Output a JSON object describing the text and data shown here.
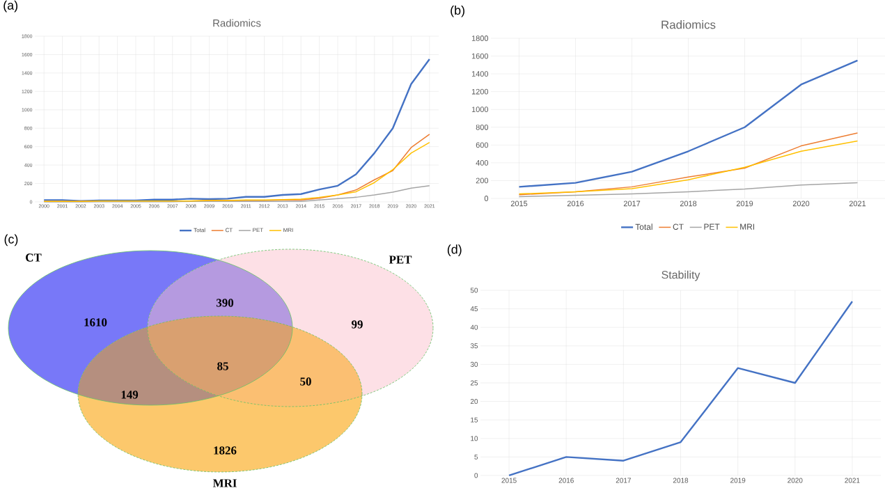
{
  "chart_data": [
    {
      "type": "line",
      "title": "Radiomics",
      "annotations": [
        "(a)"
      ],
      "categories": [
        "2000",
        "2001",
        "2002",
        "2003",
        "2004",
        "2005",
        "2006",
        "2007",
        "2008",
        "2009",
        "2010",
        "2011",
        "2012",
        "2013",
        "2014",
        "2015",
        "2016",
        "2017",
        "2018",
        "2019",
        "2020",
        "2021"
      ],
      "ylim": [
        0,
        1800
      ],
      "yticks": [
        0,
        200,
        400,
        600,
        800,
        1000,
        1200,
        1400,
        1600,
        1800
      ],
      "grid": true,
      "legend": "bottom",
      "series": [
        {
          "name": "Total",
          "color": "#4472c4",
          "values": [
            20,
            20,
            10,
            15,
            15,
            15,
            25,
            25,
            35,
            30,
            35,
            55,
            55,
            75,
            85,
            135,
            175,
            300,
            530,
            800,
            1280,
            1550
          ]
        },
        {
          "name": "CT",
          "color": "#ed7d31",
          "values": [
            5,
            5,
            5,
            10,
            10,
            10,
            10,
            10,
            10,
            15,
            15,
            15,
            15,
            20,
            20,
            40,
            75,
            130,
            240,
            340,
            590,
            735
          ]
        },
        {
          "name": "PET",
          "color": "#a5a5a5",
          "values": [
            0,
            0,
            0,
            2,
            2,
            2,
            2,
            2,
            5,
            5,
            5,
            5,
            5,
            5,
            5,
            20,
            35,
            50,
            75,
            105,
            150,
            175
          ]
        },
        {
          "name": "MRI",
          "color": "#ffc000",
          "values": [
            5,
            5,
            5,
            10,
            10,
            10,
            10,
            10,
            10,
            15,
            15,
            20,
            20,
            25,
            30,
            50,
            75,
            110,
            210,
            350,
            530,
            645
          ]
        }
      ]
    },
    {
      "type": "line",
      "title": "Radiomics",
      "annotations": [
        "(b)"
      ],
      "categories": [
        "2015",
        "2016",
        "2017",
        "2018",
        "2019",
        "2020",
        "2021"
      ],
      "ylim": [
        0,
        1800
      ],
      "yticks": [
        0,
        200,
        400,
        600,
        800,
        1000,
        1200,
        1400,
        1600,
        1800
      ],
      "grid": true,
      "legend": "bottom",
      "series": [
        {
          "name": "Total",
          "color": "#4472c4",
          "values": [
            130,
            175,
            300,
            530,
            800,
            1280,
            1550
          ]
        },
        {
          "name": "CT",
          "color": "#ed7d31",
          "values": [
            40,
            75,
            130,
            240,
            340,
            590,
            735
          ]
        },
        {
          "name": "PET",
          "color": "#a5a5a5",
          "values": [
            20,
            35,
            50,
            75,
            105,
            150,
            175
          ]
        },
        {
          "name": "MRI",
          "color": "#ffc000",
          "values": [
            50,
            75,
            110,
            210,
            350,
            530,
            645
          ]
        }
      ]
    },
    {
      "type": "other",
      "annotations": [
        "(c)",
        "1610",
        "99",
        "1826",
        "390",
        "149",
        "50",
        "85"
      ],
      "categories": [
        "CT",
        "PET",
        "MRI"
      ],
      "colors": [
        "#7878f8",
        "#fde0e6",
        "#fcc86c"
      ]
    },
    {
      "type": "line",
      "title": "Stability",
      "annotations": [
        "(d)"
      ],
      "categories": [
        "2015",
        "2016",
        "2017",
        "2018",
        "2019",
        "2020",
        "2021"
      ],
      "ylim": [
        0,
        50
      ],
      "yticks": [
        0,
        5,
        10,
        15,
        20,
        25,
        30,
        35,
        40,
        45,
        50
      ],
      "grid": true,
      "series": [
        {
          "color": "#4472c4",
          "values": [
            0,
            5,
            4,
            9,
            29,
            25,
            47
          ]
        }
      ]
    }
  ]
}
